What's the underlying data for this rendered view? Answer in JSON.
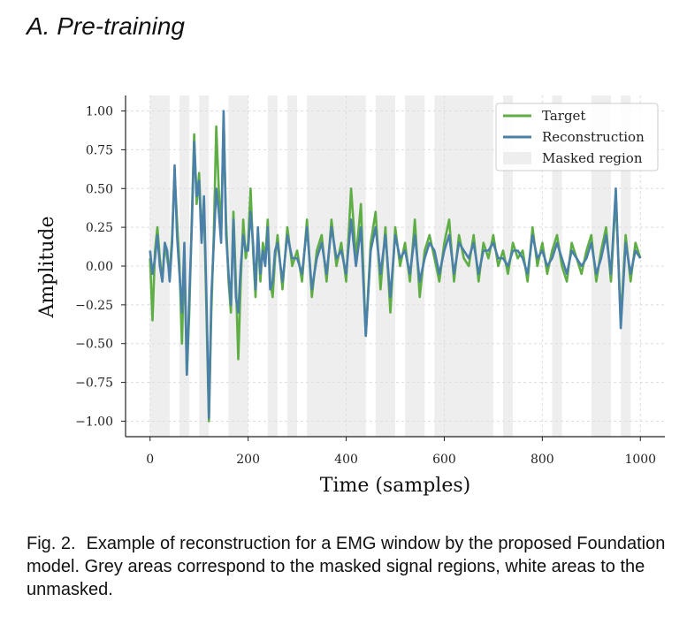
{
  "heading": "A.  Pre-training",
  "caption": {
    "label": "Fig. 2.",
    "text": "Example of reconstruction for a EMG window by the proposed Foundation model. Grey areas correspond to the masked signal regions, white areas to the unmasked."
  },
  "colors": {
    "target": "#5fae45",
    "reconstruction": "#4b80a8",
    "masked": "#eeeeee",
    "grid": "#dddddd"
  },
  "chart_data": {
    "type": "line",
    "title": "",
    "xlabel": "Time (samples)",
    "ylabel": "Amplitude",
    "xlim": [
      -50,
      1050
    ],
    "ylim": [
      -1.1,
      1.1
    ],
    "xticks": [
      0,
      200,
      400,
      600,
      800,
      1000
    ],
    "xtick_labels": [
      "0",
      "200",
      "400",
      "600",
      "800",
      "1000"
    ],
    "yticks": [
      1.0,
      0.75,
      0.5,
      0.25,
      0.0,
      -0.25,
      -0.5,
      -0.75,
      -1.0
    ],
    "ytick_labels": [
      "1.00",
      "0.75",
      "0.50",
      "0.25",
      "0.00",
      "−0.25",
      "−0.50",
      "−0.75",
      "−1.00"
    ],
    "grid": true,
    "legend": {
      "position": "top-right",
      "entries": [
        "Target",
        "Reconstruction",
        "Masked region"
      ]
    },
    "masked_regions": [
      [
        0,
        40
      ],
      [
        60,
        80
      ],
      [
        100,
        120
      ],
      [
        160,
        200
      ],
      [
        240,
        260
      ],
      [
        280,
        300
      ],
      [
        320,
        440
      ],
      [
        460,
        500
      ],
      [
        520,
        560
      ],
      [
        580,
        700
      ],
      [
        720,
        740
      ],
      [
        820,
        840
      ],
      [
        900,
        940
      ],
      [
        960,
        980
      ]
    ],
    "series": [
      {
        "name": "Target",
        "x": [
          0,
          5,
          10,
          15,
          20,
          25,
          30,
          35,
          40,
          45,
          50,
          55,
          60,
          65,
          70,
          75,
          80,
          85,
          90,
          95,
          100,
          105,
          110,
          115,
          120,
          125,
          130,
          135,
          140,
          145,
          150,
          155,
          160,
          165,
          170,
          175,
          180,
          185,
          190,
          195,
          200,
          205,
          210,
          215,
          220,
          225,
          230,
          235,
          240,
          245,
          250,
          255,
          260,
          270,
          280,
          290,
          300,
          310,
          320,
          330,
          340,
          350,
          360,
          370,
          380,
          390,
          400,
          410,
          420,
          430,
          440,
          450,
          460,
          470,
          480,
          490,
          500,
          510,
          520,
          530,
          540,
          550,
          560,
          570,
          580,
          590,
          600,
          610,
          620,
          630,
          640,
          650,
          660,
          670,
          680,
          690,
          700,
          710,
          720,
          730,
          740,
          750,
          760,
          770,
          780,
          790,
          800,
          810,
          820,
          830,
          840,
          850,
          860,
          870,
          880,
          890,
          900,
          910,
          920,
          930,
          940,
          950,
          960,
          970,
          980,
          990,
          1000
        ],
        "values": [
          0.05,
          -0.35,
          0.1,
          0.25,
          0.05,
          -0.1,
          0.15,
          0.05,
          -0.05,
          0.2,
          0.6,
          0.3,
          0.0,
          -0.5,
          0.1,
          -0.7,
          -0.3,
          0.3,
          0.85,
          0.4,
          0.6,
          0.2,
          0.4,
          -0.3,
          -1.0,
          -0.3,
          0.2,
          0.9,
          0.5,
          0.2,
          0.95,
          0.3,
          -0.1,
          -0.3,
          0.35,
          -0.1,
          -0.6,
          -0.1,
          0.3,
          0.05,
          0.15,
          0.5,
          0.1,
          -0.2,
          0.2,
          -0.1,
          0.15,
          0.05,
          0.3,
          -0.1,
          -0.2,
          0.05,
          0.2,
          -0.15,
          0.25,
          0.0,
          0.1,
          -0.1,
          0.3,
          -0.2,
          0.1,
          0.2,
          -0.1,
          0.3,
          0.0,
          0.15,
          -0.1,
          0.5,
          0.05,
          0.4,
          -0.45,
          0.15,
          0.35,
          -0.15,
          0.25,
          -0.3,
          0.25,
          0.0,
          0.15,
          -0.1,
          0.3,
          -0.2,
          0.1,
          0.2,
          0.05,
          -0.1,
          0.15,
          0.3,
          -0.1,
          0.2,
          0.05,
          0.0,
          0.2,
          -0.1,
          0.15,
          0.05,
          0.2,
          0.0,
          0.1,
          -0.05,
          0.15,
          0.05,
          0.1,
          -0.1,
          0.25,
          0.0,
          0.15,
          -0.05,
          0.1,
          0.2,
          0.0,
          -0.1,
          0.15,
          0.05,
          -0.05,
          0.1,
          0.2,
          -0.1,
          0.1,
          0.25,
          -0.1,
          0.45,
          -0.35,
          0.2,
          -0.1,
          0.15,
          0.05
        ]
      },
      {
        "name": "Reconstruction",
        "x": [
          0,
          5,
          10,
          15,
          20,
          25,
          30,
          35,
          40,
          45,
          50,
          55,
          60,
          65,
          70,
          75,
          80,
          85,
          90,
          95,
          100,
          105,
          110,
          115,
          120,
          125,
          130,
          135,
          140,
          145,
          150,
          155,
          160,
          165,
          170,
          175,
          180,
          185,
          190,
          195,
          200,
          205,
          210,
          215,
          220,
          225,
          230,
          235,
          240,
          245,
          250,
          255,
          260,
          270,
          280,
          290,
          300,
          310,
          320,
          330,
          340,
          350,
          360,
          370,
          380,
          390,
          400,
          410,
          420,
          430,
          440,
          450,
          460,
          470,
          480,
          490,
          500,
          510,
          520,
          530,
          540,
          550,
          560,
          570,
          580,
          590,
          600,
          610,
          620,
          630,
          640,
          650,
          660,
          670,
          680,
          690,
          700,
          710,
          720,
          730,
          740,
          750,
          760,
          770,
          780,
          790,
          800,
          810,
          820,
          830,
          840,
          850,
          860,
          870,
          880,
          890,
          900,
          910,
          920,
          930,
          940,
          950,
          960,
          970,
          980,
          990,
          1000
        ],
        "values": [
          0.1,
          -0.05,
          0.05,
          0.2,
          0.0,
          -0.1,
          0.15,
          0.1,
          -0.1,
          0.15,
          0.65,
          0.2,
          -0.05,
          -0.3,
          0.15,
          -0.7,
          -0.2,
          0.25,
          0.8,
          0.45,
          0.55,
          0.15,
          0.45,
          -0.2,
          -0.98,
          -0.2,
          0.15,
          0.5,
          0.35,
          0.15,
          1.0,
          0.2,
          -0.05,
          -0.25,
          0.3,
          -0.2,
          -0.3,
          0.0,
          0.2,
          0.1,
          0.1,
          0.35,
          0.15,
          -0.15,
          0.25,
          -0.05,
          0.1,
          0.0,
          0.25,
          -0.15,
          -0.1,
          0.1,
          0.15,
          -0.1,
          0.2,
          0.05,
          0.05,
          -0.05,
          0.25,
          -0.15,
          0.05,
          0.15,
          -0.05,
          0.25,
          0.05,
          0.1,
          -0.05,
          0.3,
          0.0,
          0.25,
          -0.45,
          0.1,
          0.25,
          -0.05,
          0.2,
          -0.2,
          0.2,
          0.05,
          0.1,
          -0.05,
          0.2,
          -0.1,
          0.05,
          0.15,
          0.1,
          -0.05,
          0.1,
          0.2,
          -0.05,
          0.15,
          0.1,
          0.05,
          0.15,
          -0.05,
          0.1,
          0.1,
          0.15,
          0.05,
          0.05,
          0.0,
          0.1,
          0.1,
          0.05,
          -0.05,
          0.2,
          0.05,
          0.1,
          0.0,
          0.05,
          0.15,
          0.05,
          -0.05,
          0.1,
          0.05,
          0.0,
          0.05,
          0.15,
          -0.05,
          0.05,
          0.2,
          -0.05,
          0.5,
          -0.4,
          0.15,
          -0.05,
          0.1,
          0.05
        ]
      }
    ]
  }
}
